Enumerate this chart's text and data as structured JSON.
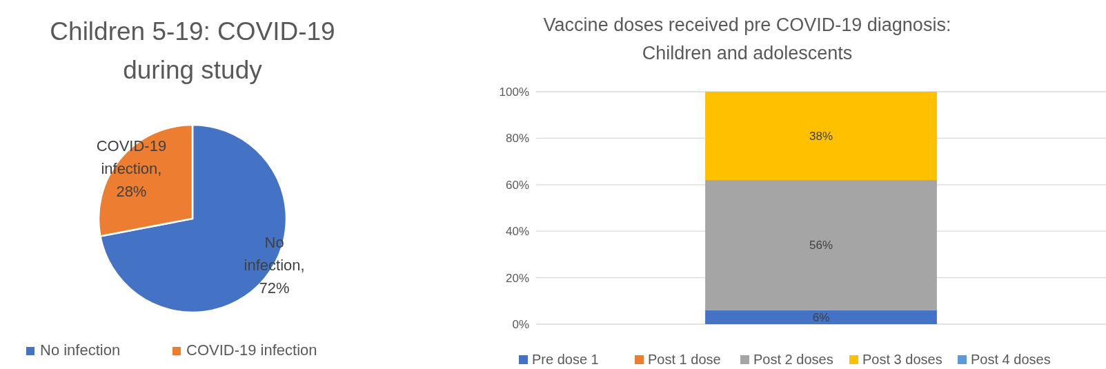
{
  "chart_data": [
    {
      "type": "pie",
      "title": "Children 5-19: COVID-19 during study",
      "categories": [
        "No infection",
        "COVID-19 infection"
      ],
      "values": [
        72,
        28
      ],
      "colors": [
        "#4472c4",
        "#ed7d31"
      ],
      "value_labels": [
        "No infection, 72%",
        "COVID-19 infection, 28%"
      ],
      "legend": "bottom"
    },
    {
      "type": "bar",
      "title": "Vaccine doses received pre COVID-19 diagnosis: Children and adolescents",
      "categories": [
        null
      ],
      "stacked": true,
      "series": [
        {
          "name": "Pre dose 1",
          "color": "#4472c4",
          "values": [
            6
          ],
          "value_labels": [
            "6%"
          ]
        },
        {
          "name": "Post 1 dose",
          "color": "#ed7d31",
          "values": [
            0
          ],
          "value_labels": [
            null
          ]
        },
        {
          "name": "Post 2 doses",
          "color": "#a5a5a5",
          "values": [
            56
          ],
          "value_labels": [
            "56%"
          ]
        },
        {
          "name": "Post 3 doses",
          "color": "#ffc000",
          "values": [
            38
          ],
          "value_labels": [
            "38%"
          ]
        },
        {
          "name": "Post 4 doses",
          "color": "#5b9bd5",
          "values": [
            0
          ],
          "value_labels": [
            null
          ]
        }
      ],
      "ylim": [
        0,
        100
      ],
      "yticks": [
        {
          "value": 0,
          "label": "0%"
        },
        {
          "value": 20,
          "label": "20%"
        },
        {
          "value": 40,
          "label": "40%"
        },
        {
          "value": 60,
          "label": "60%"
        },
        {
          "value": 80,
          "label": "80%"
        },
        {
          "value": 100,
          "label": "100%"
        }
      ],
      "grid": "y",
      "legend": "bottom"
    }
  ]
}
